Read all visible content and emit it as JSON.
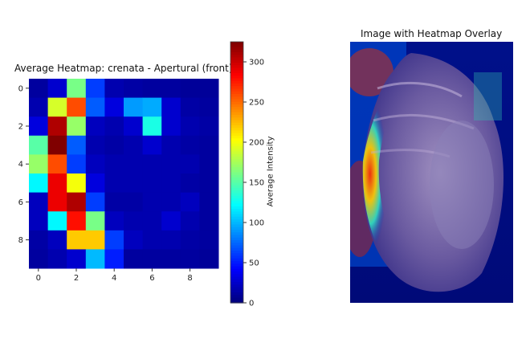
{
  "chart_data": [
    {
      "type": "heatmap",
      "title": "Average Heatmap: crenata - Apertural (front)",
      "xticks": [
        "0",
        "2",
        "4",
        "6",
        "8"
      ],
      "yticks": [
        "0",
        "2",
        "4",
        "6",
        "8"
      ],
      "rows": 10,
      "cols": 10,
      "vmin": 0,
      "vmax": 325,
      "colormap": "jet",
      "values": [
        [
          10,
          25,
          160,
          60,
          15,
          12,
          10,
          10,
          8,
          8
        ],
        [
          15,
          190,
          260,
          70,
          30,
          90,
          95,
          25,
          12,
          10
        ],
        [
          30,
          310,
          170,
          20,
          15,
          25,
          130,
          25,
          15,
          12
        ],
        [
          150,
          325,
          70,
          15,
          12,
          15,
          25,
          15,
          12,
          10
        ],
        [
          170,
          260,
          60,
          20,
          15,
          15,
          15,
          15,
          15,
          10
        ],
        [
          120,
          290,
          200,
          30,
          15,
          15,
          15,
          15,
          12,
          10
        ],
        [
          20,
          290,
          310,
          60,
          12,
          12,
          15,
          15,
          20,
          10
        ],
        [
          20,
          120,
          280,
          160,
          20,
          15,
          15,
          25,
          15,
          10
        ],
        [
          12,
          20,
          220,
          220,
          60,
          20,
          15,
          15,
          12,
          10
        ],
        [
          10,
          15,
          25,
          100,
          50,
          10,
          10,
          10,
          10,
          8
        ]
      ],
      "colorbar": {
        "label": "Average Intensity",
        "ticks": [
          "0",
          "50",
          "100",
          "150",
          "200",
          "250",
          "300"
        ]
      }
    }
  ],
  "overlay_panel": {
    "title": "Image with Heatmap Overlay"
  }
}
